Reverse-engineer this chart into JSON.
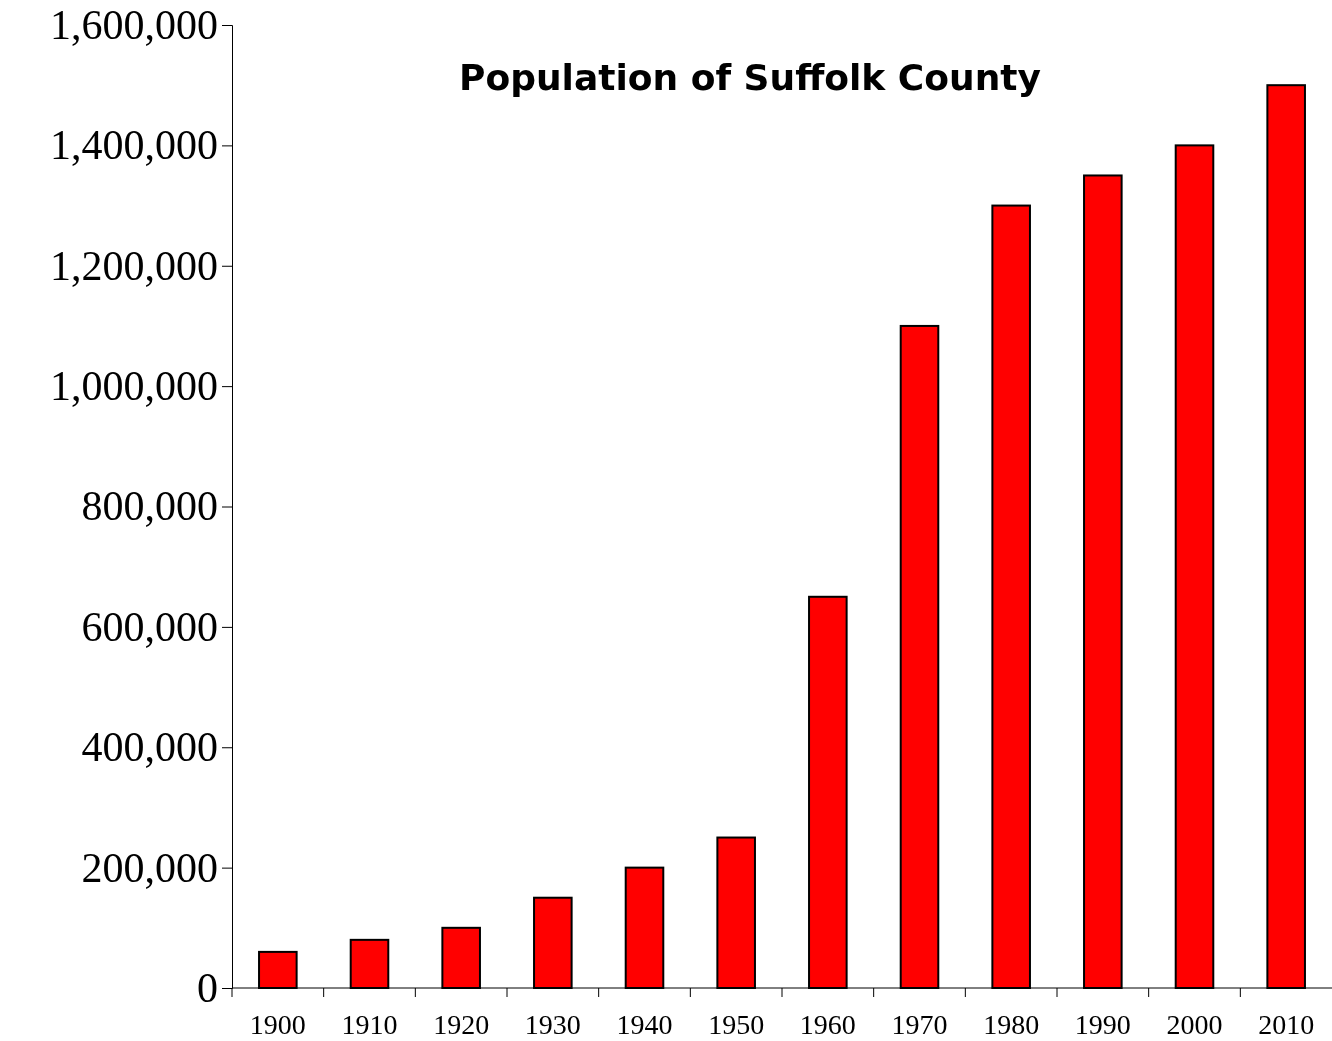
{
  "chart_data": {
    "type": "bar",
    "title": "Population of Suffolk County",
    "categories": [
      "1900",
      "1910",
      "1920",
      "1930",
      "1940",
      "1950",
      "1960",
      "1970",
      "1980",
      "1990",
      "2000",
      "2010"
    ],
    "values": [
      60000,
      80000,
      100000,
      150000,
      200000,
      250000,
      650000,
      1100000,
      1300000,
      1350000,
      1400000,
      1500000
    ],
    "color": "#ff0000",
    "ylim": [
      0,
      1600000
    ],
    "yticks": [
      {
        "value": 0,
        "label": "0"
      },
      {
        "value": 200000,
        "label": "200,000"
      },
      {
        "value": 400000,
        "label": "400,000"
      },
      {
        "value": 600000,
        "label": "600,000"
      },
      {
        "value": 800000,
        "label": "800,000"
      },
      {
        "value": 1000000,
        "label": "1,000,000"
      },
      {
        "value": 1200000,
        "label": "1,200,000"
      },
      {
        "value": 1400000,
        "label": "1,400,000"
      },
      {
        "value": 1600000,
        "label": "1,600,000"
      }
    ],
    "grid": false
  }
}
